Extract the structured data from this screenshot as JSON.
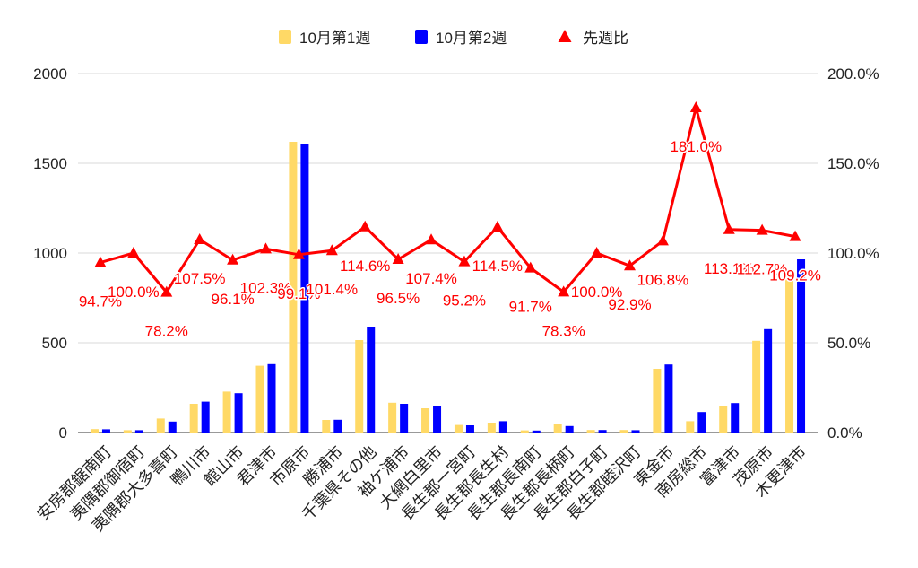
{
  "chart_data": {
    "type": "bar",
    "categories": [
      "安房郡鋸南町",
      "夷隅郡御宿町",
      "夷隅郡大多喜町",
      "鴨川市",
      "館山市",
      "君津市",
      "市原市",
      "勝浦市",
      "千葉県その他",
      "袖ケ浦市",
      "大網白里市",
      "長生郡一宮町",
      "長生郡長生村",
      "長生郡長南町",
      "長生郡長柄町",
      "長生郡白子町",
      "長生郡睦沢町",
      "東金市",
      "南房総市",
      "富津市",
      "茂原市",
      "木更津市"
    ],
    "series": [
      {
        "name": "10月第1週",
        "type": "bar",
        "axis": "left",
        "color": "#FFD966",
        "values": [
          19,
          13,
          78,
          160,
          228,
          372,
          1620,
          70,
          515,
          166,
          135,
          42,
          55,
          12,
          46,
          14,
          14,
          355,
          63,
          145,
          511,
          884
        ]
      },
      {
        "name": "10月第2週",
        "type": "bar",
        "axis": "left",
        "color": "#0000FF",
        "values": [
          18,
          13,
          61,
          172,
          219,
          381,
          1606,
          71,
          590,
          160,
          145,
          40,
          63,
          11,
          36,
          14,
          13,
          379,
          114,
          164,
          576,
          965
        ]
      },
      {
        "name": "先週比",
        "type": "line",
        "axis": "right",
        "color": "#FF0000",
        "marker": "triangle",
        "values": [
          94.7,
          100.0,
          78.2,
          107.5,
          96.1,
          102.3,
          99.1,
          101.4,
          114.6,
          96.5,
          107.4,
          95.2,
          114.5,
          91.7,
          78.3,
          100.0,
          92.9,
          106.8,
          181.0,
          113.1,
          112.7,
          109.2
        ],
        "labels": [
          "94.7%",
          "100.0%",
          "78.2%",
          "107.5%",
          "96.1%",
          "102.3%",
          "99.1%",
          "101.4%",
          "114.6%",
          "96.5%",
          "107.4%",
          "95.2%",
          "114.5%",
          "91.7%",
          "78.3%",
          "100.0%",
          "92.9%",
          "106.8%",
          "181.0%",
          "113.1%",
          "112.7%",
          "109.2%"
        ]
      }
    ],
    "ylim": [
      0,
      2000
    ],
    "yticks": [
      0,
      500,
      1000,
      1500,
      2000
    ],
    "y2lim": [
      0,
      200
    ],
    "y2ticks": [
      0,
      50,
      100,
      150,
      200
    ],
    "y2tick_labels": [
      "0.0%",
      "50.0%",
      "100.0%",
      "150.0%",
      "200.0%"
    ],
    "grid": true,
    "legend": "top"
  }
}
